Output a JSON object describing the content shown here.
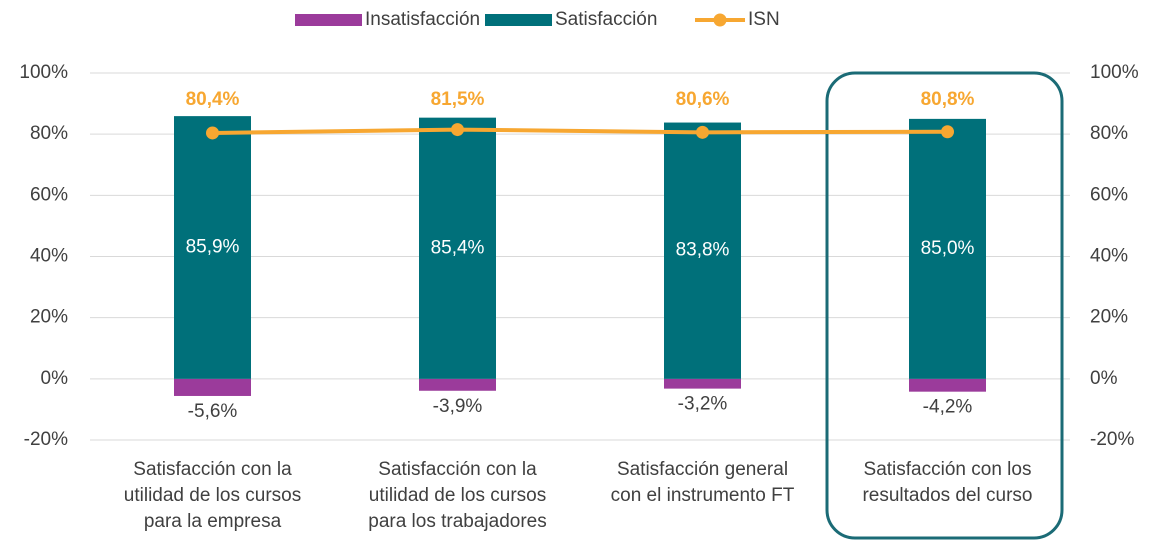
{
  "chart_data": {
    "type": "bar",
    "categories": [
      [
        "Satisfacción con la",
        "utilidad de los cursos",
        "para la empresa"
      ],
      [
        "Satisfacción con la",
        "utilidad de los cursos",
        "para los trabajadores"
      ],
      [
        "Satisfacción general",
        "con el instrumento FT"
      ],
      [
        "Satisfacción con los",
        "resultados del curso"
      ]
    ],
    "series": [
      {
        "name": "Insatisfacción",
        "type": "bar",
        "color": "#9b3b9b",
        "values": [
          -5.6,
          -3.9,
          -3.2,
          -4.2
        ],
        "value_labels": [
          "-5,6%",
          "-3,9%",
          "-3,2%",
          "-4,2%"
        ]
      },
      {
        "name": "Satisfacción",
        "type": "bar",
        "color": "#00707a",
        "values": [
          85.9,
          85.4,
          83.8,
          85.0
        ],
        "value_labels": [
          "85,9%",
          "85,4%",
          "83,8%",
          "85,0%"
        ]
      },
      {
        "name": "ISN",
        "type": "line",
        "axis": "y2",
        "color": "#f7a731",
        "values": [
          80.4,
          81.5,
          80.6,
          80.8
        ],
        "value_labels": [
          "80,4%",
          "81,5%",
          "80,6%",
          "80,8%"
        ]
      }
    ],
    "ylim": [
      -20,
      100
    ],
    "yticks": [
      {
        "value": -20,
        "label": "-20%"
      },
      {
        "value": 0,
        "label": "0%"
      },
      {
        "value": 20,
        "label": "20%"
      },
      {
        "value": 40,
        "label": "40%"
      },
      {
        "value": 60,
        "label": "60%"
      },
      {
        "value": 80,
        "label": "80%"
      },
      {
        "value": 100,
        "label": "100%"
      }
    ],
    "y2lim": [
      -20,
      100
    ],
    "y2ticks": [
      {
        "value": -20,
        "label": "-20%"
      },
      {
        "value": 0,
        "label": "0%"
      },
      {
        "value": 20,
        "label": "20%"
      },
      {
        "value": 40,
        "label": "40%"
      },
      {
        "value": 60,
        "label": "60%"
      },
      {
        "value": 80,
        "label": "80%"
      },
      {
        "value": 100,
        "label": "100%"
      }
    ],
    "grid": true,
    "legend": "top"
  }
}
